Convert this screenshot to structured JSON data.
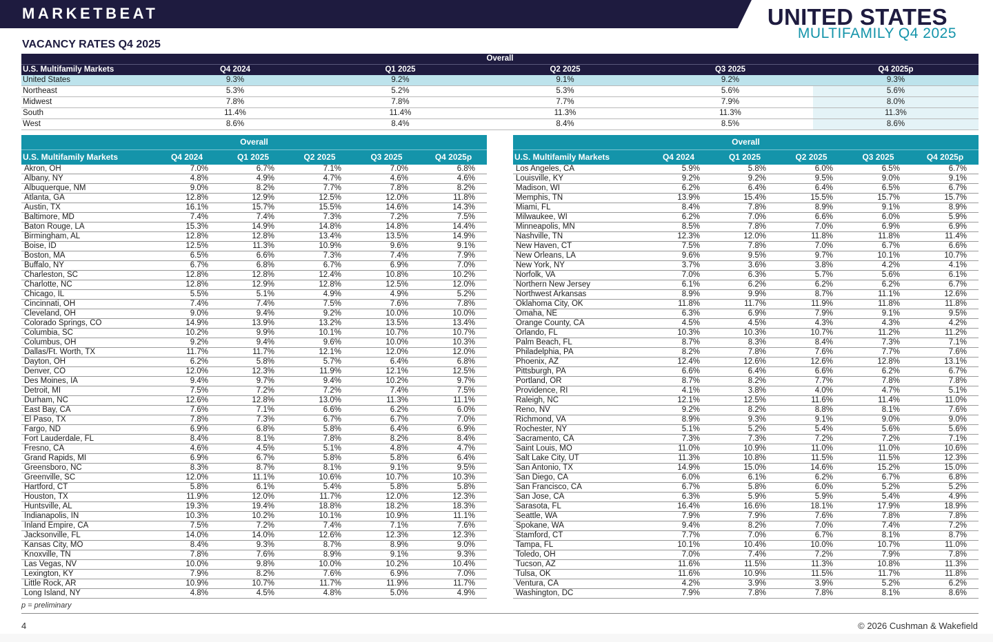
{
  "header": {
    "brand": "MARKETBEAT",
    "title_main": "UNITED STATES",
    "title_sub": "MULTIFAMILY Q4 2025",
    "section_title": "VACANCY RATES Q4 2025"
  },
  "colors": {
    "navy": "#1e1b3f",
    "teal": "#1494aa",
    "light_teal": "#bde3ec"
  },
  "top_table": {
    "band": "Overall",
    "columns": [
      "U.S. Multifamily Markets",
      "Q4 2024",
      "Q1 2025",
      "Q2 2025",
      "Q3 2025",
      "Q4 2025p"
    ],
    "rows": [
      [
        "United States",
        "9.3%",
        "9.2%",
        "9.1%",
        "9.2%",
        "9.3%"
      ],
      [
        "Northeast",
        "5.3%",
        "5.2%",
        "5.3%",
        "5.6%",
        "5.6%"
      ],
      [
        "Midwest",
        "7.8%",
        "7.8%",
        "7.7%",
        "7.9%",
        "8.0%"
      ],
      [
        "South",
        "11.4%",
        "11.4%",
        "11.3%",
        "11.3%",
        "11.3%"
      ],
      [
        "West",
        "8.6%",
        "8.4%",
        "8.4%",
        "8.5%",
        "8.6%"
      ]
    ]
  },
  "left_table": {
    "band": "Overall",
    "columns": [
      "U.S. Multifamily Markets",
      "Q4 2024",
      "Q1 2025",
      "Q2 2025",
      "Q3 2025",
      "Q4 2025p"
    ],
    "rows": [
      [
        "Akron, OH",
        "7.0%",
        "6.7%",
        "7.1%",
        "7.0%",
        "6.8%"
      ],
      [
        "Albany, NY",
        "4.8%",
        "4.9%",
        "4.7%",
        "4.6%",
        "4.6%"
      ],
      [
        "Albuquerque, NM",
        "9.0%",
        "8.2%",
        "7.7%",
        "7.8%",
        "8.2%"
      ],
      [
        "Atlanta, GA",
        "12.8%",
        "12.9%",
        "12.5%",
        "12.0%",
        "11.8%"
      ],
      [
        "Austin, TX",
        "16.1%",
        "15.7%",
        "15.5%",
        "14.6%",
        "14.3%"
      ],
      [
        "Baltimore, MD",
        "7.4%",
        "7.4%",
        "7.3%",
        "7.2%",
        "7.5%"
      ],
      [
        "Baton Rouge, LA",
        "15.3%",
        "14.9%",
        "14.8%",
        "14.8%",
        "14.4%"
      ],
      [
        "Birmingham, AL",
        "12.8%",
        "12.8%",
        "13.4%",
        "13.5%",
        "14.9%"
      ],
      [
        "Boise, ID",
        "12.5%",
        "11.3%",
        "10.9%",
        "9.6%",
        "9.1%"
      ],
      [
        "Boston, MA",
        "6.5%",
        "6.6%",
        "7.3%",
        "7.4%",
        "7.9%"
      ],
      [
        "Buffalo, NY",
        "6.7%",
        "6.8%",
        "6.7%",
        "6.9%",
        "7.0%"
      ],
      [
        "Charleston, SC",
        "12.8%",
        "12.8%",
        "12.4%",
        "10.8%",
        "10.2%"
      ],
      [
        "Charlotte, NC",
        "12.8%",
        "12.9%",
        "12.8%",
        "12.5%",
        "12.0%"
      ],
      [
        "Chicago, IL",
        "5.5%",
        "5.1%",
        "4.9%",
        "4.9%",
        "5.2%"
      ],
      [
        "Cincinnati, OH",
        "7.4%",
        "7.4%",
        "7.5%",
        "7.6%",
        "7.8%"
      ],
      [
        "Cleveland, OH",
        "9.0%",
        "9.4%",
        "9.2%",
        "10.0%",
        "10.0%"
      ],
      [
        "Colorado Springs, CO",
        "14.9%",
        "13.9%",
        "13.2%",
        "13.5%",
        "13.4%"
      ],
      [
        "Columbia, SC",
        "10.2%",
        "9.9%",
        "10.1%",
        "10.7%",
        "10.7%"
      ],
      [
        "Columbus, OH",
        "9.2%",
        "9.4%",
        "9.6%",
        "10.0%",
        "10.3%"
      ],
      [
        "Dallas/Ft. Worth, TX",
        "11.7%",
        "11.7%",
        "12.1%",
        "12.0%",
        "12.0%"
      ],
      [
        "Dayton, OH",
        "6.2%",
        "5.8%",
        "5.7%",
        "6.4%",
        "6.8%"
      ],
      [
        "Denver, CO",
        "12.0%",
        "12.3%",
        "11.9%",
        "12.1%",
        "12.5%"
      ],
      [
        "Des Moines, IA",
        "9.4%",
        "9.7%",
        "9.4%",
        "10.2%",
        "9.7%"
      ],
      [
        "Detroit, MI",
        "7.5%",
        "7.2%",
        "7.2%",
        "7.4%",
        "7.5%"
      ],
      [
        "Durham, NC",
        "12.6%",
        "12.8%",
        "13.0%",
        "11.3%",
        "11.1%"
      ],
      [
        "East Bay, CA",
        "7.6%",
        "7.1%",
        "6.6%",
        "6.2%",
        "6.0%"
      ],
      [
        "El Paso, TX",
        "7.8%",
        "7.3%",
        "6.7%",
        "6.7%",
        "7.0%"
      ],
      [
        "Fargo, ND",
        "6.9%",
        "6.8%",
        "5.8%",
        "6.4%",
        "6.9%"
      ],
      [
        "Fort Lauderdale, FL",
        "8.4%",
        "8.1%",
        "7.8%",
        "8.2%",
        "8.4%"
      ],
      [
        "Fresno, CA",
        "4.6%",
        "4.5%",
        "5.1%",
        "4.8%",
        "4.7%"
      ],
      [
        "Grand Rapids, MI",
        "6.9%",
        "6.7%",
        "5.8%",
        "5.8%",
        "6.4%"
      ],
      [
        "Greensboro, NC",
        "8.3%",
        "8.7%",
        "8.1%",
        "9.1%",
        "9.5%"
      ],
      [
        "Greenville, SC",
        "12.0%",
        "11.1%",
        "10.6%",
        "10.7%",
        "10.3%"
      ],
      [
        "Hartford, CT",
        "5.8%",
        "6.1%",
        "5.4%",
        "5.8%",
        "5.8%"
      ],
      [
        "Houston, TX",
        "11.9%",
        "12.0%",
        "11.7%",
        "12.0%",
        "12.3%"
      ],
      [
        "Huntsville, AL",
        "19.3%",
        "19.4%",
        "18.8%",
        "18.2%",
        "18.3%"
      ],
      [
        "Indianapolis, IN",
        "10.3%",
        "10.2%",
        "10.1%",
        "10.9%",
        "11.1%"
      ],
      [
        "Inland Empire, CA",
        "7.5%",
        "7.2%",
        "7.4%",
        "7.1%",
        "7.6%"
      ],
      [
        "Jacksonville, FL",
        "14.0%",
        "14.0%",
        "12.6%",
        "12.3%",
        "12.3%"
      ],
      [
        "Kansas City, MO",
        "8.4%",
        "9.3%",
        "8.7%",
        "8.9%",
        "9.0%"
      ],
      [
        "Knoxville, TN",
        "7.8%",
        "7.6%",
        "8.9%",
        "9.1%",
        "9.3%"
      ],
      [
        "Las Vegas, NV",
        "10.0%",
        "9.8%",
        "10.0%",
        "10.2%",
        "10.4%"
      ],
      [
        "Lexington, KY",
        "7.9%",
        "8.2%",
        "7.6%",
        "6.9%",
        "7.0%"
      ],
      [
        "Little Rock, AR",
        "10.9%",
        "10.7%",
        "11.7%",
        "11.9%",
        "11.7%"
      ],
      [
        "Long Island, NY",
        "4.8%",
        "4.5%",
        "4.8%",
        "5.0%",
        "4.9%"
      ]
    ]
  },
  "right_table": {
    "band": "Overall",
    "columns": [
      "U.S. Multifamily Markets",
      "Q4 2024",
      "Q1 2025",
      "Q2 2025",
      "Q3 2025",
      "Q4 2025p"
    ],
    "rows": [
      [
        "Los Angeles, CA",
        "5.9%",
        "5.8%",
        "6.0%",
        "6.5%",
        "6.7%"
      ],
      [
        "Louisville, KY",
        "9.2%",
        "9.2%",
        "9.5%",
        "9.0%",
        "9.1%"
      ],
      [
        "Madison, WI",
        "6.2%",
        "6.4%",
        "6.4%",
        "6.5%",
        "6.7%"
      ],
      [
        "Memphis, TN",
        "13.9%",
        "15.4%",
        "15.5%",
        "15.7%",
        "15.7%"
      ],
      [
        "Miami, FL",
        "8.4%",
        "7.8%",
        "8.9%",
        "9.1%",
        "8.9%"
      ],
      [
        "Milwaukee, WI",
        "6.2%",
        "7.0%",
        "6.6%",
        "6.0%",
        "5.9%"
      ],
      [
        "Minneapolis, MN",
        "8.5%",
        "7.8%",
        "7.0%",
        "6.9%",
        "6.9%"
      ],
      [
        "Nashville, TN",
        "12.3%",
        "12.0%",
        "11.8%",
        "11.8%",
        "11.4%"
      ],
      [
        "New Haven, CT",
        "7.5%",
        "7.8%",
        "7.0%",
        "6.7%",
        "6.6%"
      ],
      [
        "New Orleans, LA",
        "9.6%",
        "9.5%",
        "9.7%",
        "10.1%",
        "10.7%"
      ],
      [
        "New York, NY",
        "3.7%",
        "3.6%",
        "3.8%",
        "4.2%",
        "4.1%"
      ],
      [
        "Norfolk, VA",
        "7.0%",
        "6.3%",
        "5.7%",
        "5.6%",
        "6.1%"
      ],
      [
        "Northern New Jersey",
        "6.1%",
        "6.2%",
        "6.2%",
        "6.2%",
        "6.7%"
      ],
      [
        "Northwest Arkansas",
        "8.9%",
        "9.9%",
        "8.7%",
        "11.1%",
        "12.6%"
      ],
      [
        "Oklahoma City, OK",
        "11.8%",
        "11.7%",
        "11.9%",
        "11.8%",
        "11.8%"
      ],
      [
        "Omaha, NE",
        "6.3%",
        "6.9%",
        "7.9%",
        "9.1%",
        "9.5%"
      ],
      [
        "Orange County, CA",
        "4.5%",
        "4.5%",
        "4.3%",
        "4.3%",
        "4.2%"
      ],
      [
        "Orlando, FL",
        "10.3%",
        "10.3%",
        "10.7%",
        "11.2%",
        "11.2%"
      ],
      [
        "Palm Beach, FL",
        "8.7%",
        "8.3%",
        "8.4%",
        "7.3%",
        "7.1%"
      ],
      [
        "Philadelphia, PA",
        "8.2%",
        "7.8%",
        "7.6%",
        "7.7%",
        "7.6%"
      ],
      [
        "Phoenix, AZ",
        "12.4%",
        "12.6%",
        "12.6%",
        "12.8%",
        "13.1%"
      ],
      [
        "Pittsburgh, PA",
        "6.6%",
        "6.4%",
        "6.6%",
        "6.2%",
        "6.7%"
      ],
      [
        "Portland, OR",
        "8.7%",
        "8.2%",
        "7.7%",
        "7.8%",
        "7.8%"
      ],
      [
        "Providence, RI",
        "4.1%",
        "3.8%",
        "4.0%",
        "4.7%",
        "5.1%"
      ],
      [
        "Raleigh, NC",
        "12.1%",
        "12.5%",
        "11.6%",
        "11.4%",
        "11.0%"
      ],
      [
        "Reno, NV",
        "9.2%",
        "8.2%",
        "8.8%",
        "8.1%",
        "7.6%"
      ],
      [
        "Richmond, VA",
        "8.9%",
        "9.3%",
        "9.1%",
        "9.0%",
        "9.0%"
      ],
      [
        "Rochester, NY",
        "5.1%",
        "5.2%",
        "5.4%",
        "5.6%",
        "5.6%"
      ],
      [
        "Sacramento, CA",
        "7.3%",
        "7.3%",
        "7.2%",
        "7.2%",
        "7.1%"
      ],
      [
        "Saint Louis, MO",
        "11.0%",
        "10.9%",
        "11.0%",
        "11.0%",
        "10.6%"
      ],
      [
        "Salt Lake City, UT",
        "11.3%",
        "10.8%",
        "11.5%",
        "11.5%",
        "12.3%"
      ],
      [
        "San Antonio, TX",
        "14.9%",
        "15.0%",
        "14.6%",
        "15.2%",
        "15.0%"
      ],
      [
        "San Diego, CA",
        "6.0%",
        "6.1%",
        "6.2%",
        "6.7%",
        "6.8%"
      ],
      [
        "San Francisco, CA",
        "6.7%",
        "5.8%",
        "6.0%",
        "5.2%",
        "5.2%"
      ],
      [
        "San Jose, CA",
        "6.3%",
        "5.9%",
        "5.9%",
        "5.4%",
        "4.9%"
      ],
      [
        "Sarasota, FL",
        "16.4%",
        "16.6%",
        "18.1%",
        "17.9%",
        "18.9%"
      ],
      [
        "Seattle, WA",
        "7.9%",
        "7.9%",
        "7.6%",
        "7.8%",
        "7.8%"
      ],
      [
        "Spokane, WA",
        "9.4%",
        "8.2%",
        "7.0%",
        "7.4%",
        "7.2%"
      ],
      [
        "Stamford, CT",
        "7.7%",
        "7.0%",
        "6.7%",
        "8.1%",
        "8.7%"
      ],
      [
        "Tampa, FL",
        "10.1%",
        "10.4%",
        "10.0%",
        "10.7%",
        "11.0%"
      ],
      [
        "Toledo, OH",
        "7.0%",
        "7.4%",
        "7.2%",
        "7.9%",
        "7.8%"
      ],
      [
        "Tucson, AZ",
        "11.6%",
        "11.5%",
        "11.3%",
        "10.8%",
        "11.3%"
      ],
      [
        "Tulsa, OK",
        "11.6%",
        "10.9%",
        "11.5%",
        "11.7%",
        "11.8%"
      ],
      [
        "Ventura, CA",
        "4.2%",
        "3.9%",
        "3.9%",
        "5.2%",
        "6.2%"
      ],
      [
        "Washington, DC",
        "7.9%",
        "7.8%",
        "7.8%",
        "8.1%",
        "8.6%"
      ]
    ]
  },
  "footer": {
    "note": "p = preliminary",
    "page_number": "4",
    "copyright": "© 2026 Cushman & Wakefield"
  }
}
